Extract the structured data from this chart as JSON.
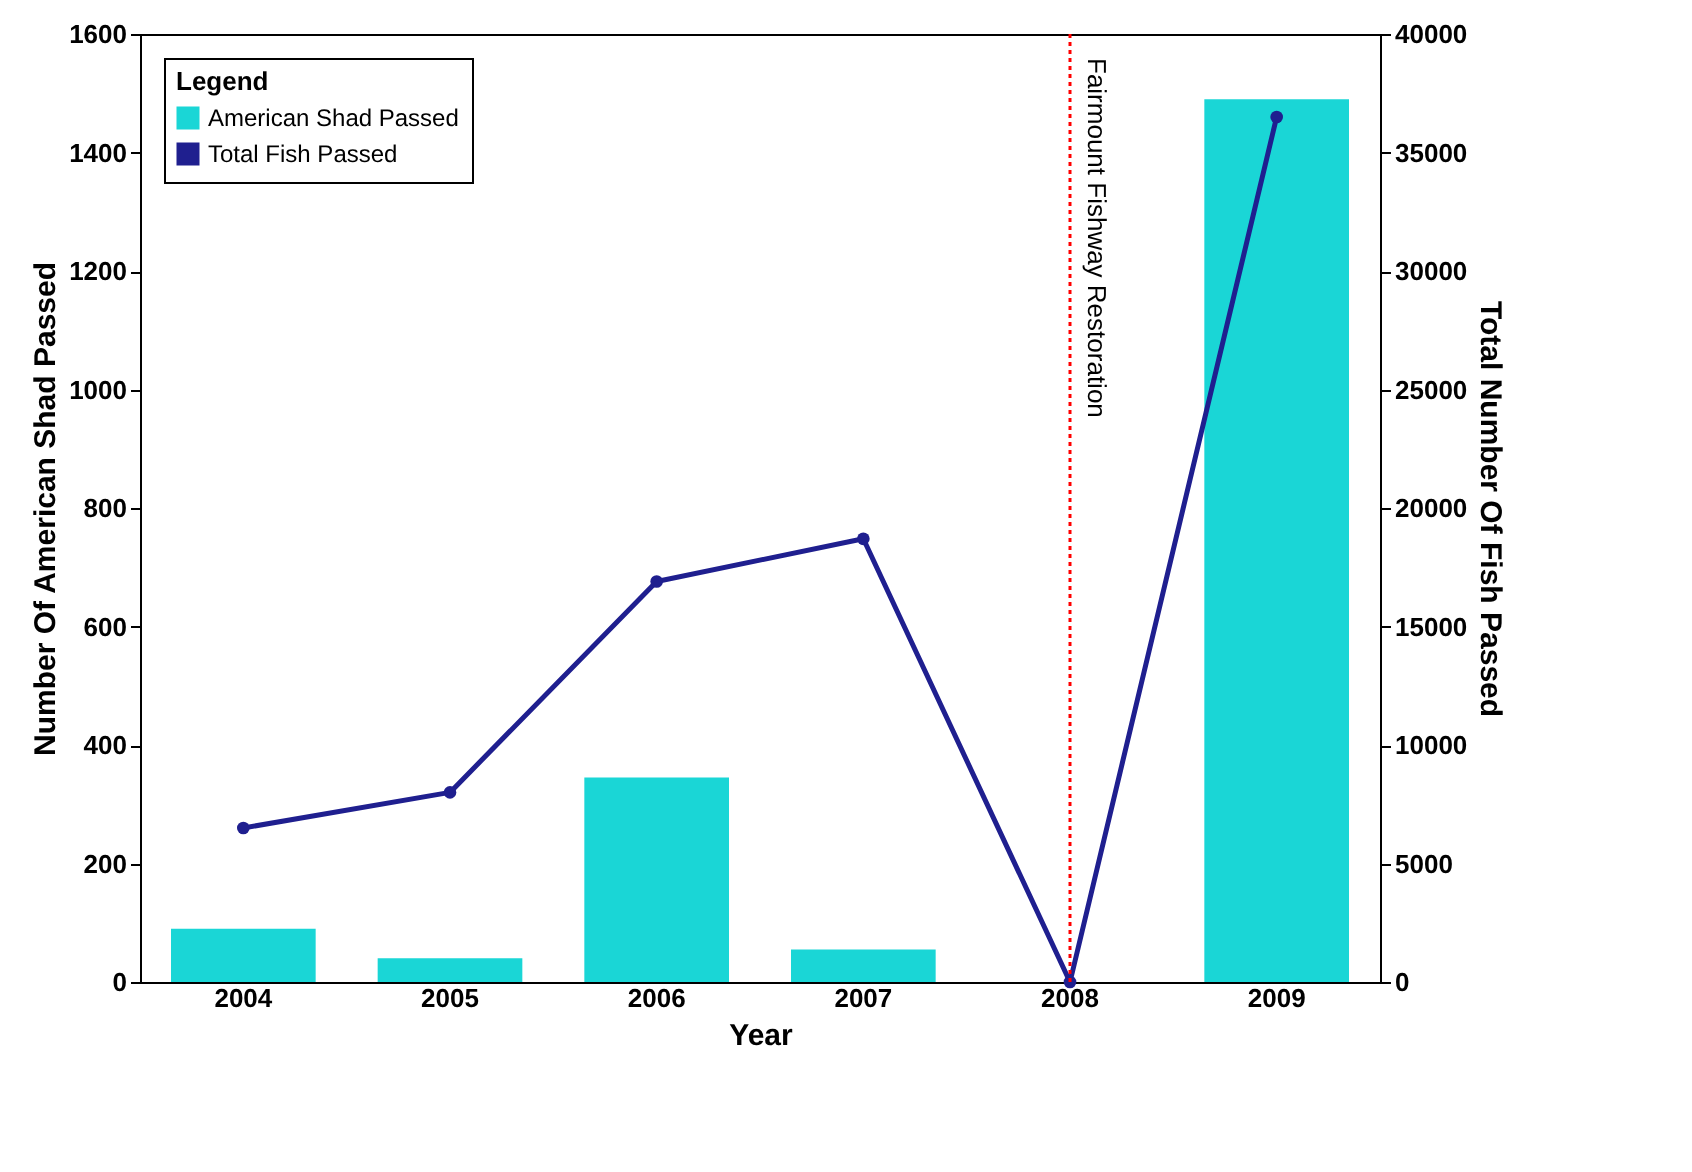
{
  "chart_data": {
    "type": "bar",
    "xlabel": "Year",
    "ylabel": "Number Of American Shad Passed",
    "y2label": "Total Number Of Fish Passed",
    "legend_title": "Legend",
    "categories": [
      "2004",
      "2005",
      "2006",
      "2007",
      "2008",
      "2009"
    ],
    "series": [
      {
        "name": "American Shad Passed",
        "color": "#1ad6d6",
        "values": [
          90,
          40,
          345,
          55,
          null,
          1490
        ]
      },
      {
        "name": "Total Fish Passed",
        "type": "line",
        "axis": "y2",
        "color": "#1f1f8f",
        "marker": "circle",
        "values": [
          6500,
          8000,
          16900,
          18700,
          0,
          36500
        ]
      }
    ],
    "ylim": [
      0,
      1600
    ],
    "yticks": [
      0,
      200,
      400,
      600,
      800,
      1000,
      1200,
      1400,
      1600
    ],
    "y2lim": [
      0,
      40000
    ],
    "y2ticks": [
      0,
      5000,
      10000,
      15000,
      20000,
      25000,
      30000,
      35000,
      40000
    ],
    "ref_lines": [
      {
        "axis": "x",
        "value": "2008",
        "label": "Fairmount Fishway Restoration",
        "color": "#ff0000",
        "line_style": "dotted"
      }
    ],
    "grid": false,
    "legend": "top left"
  }
}
